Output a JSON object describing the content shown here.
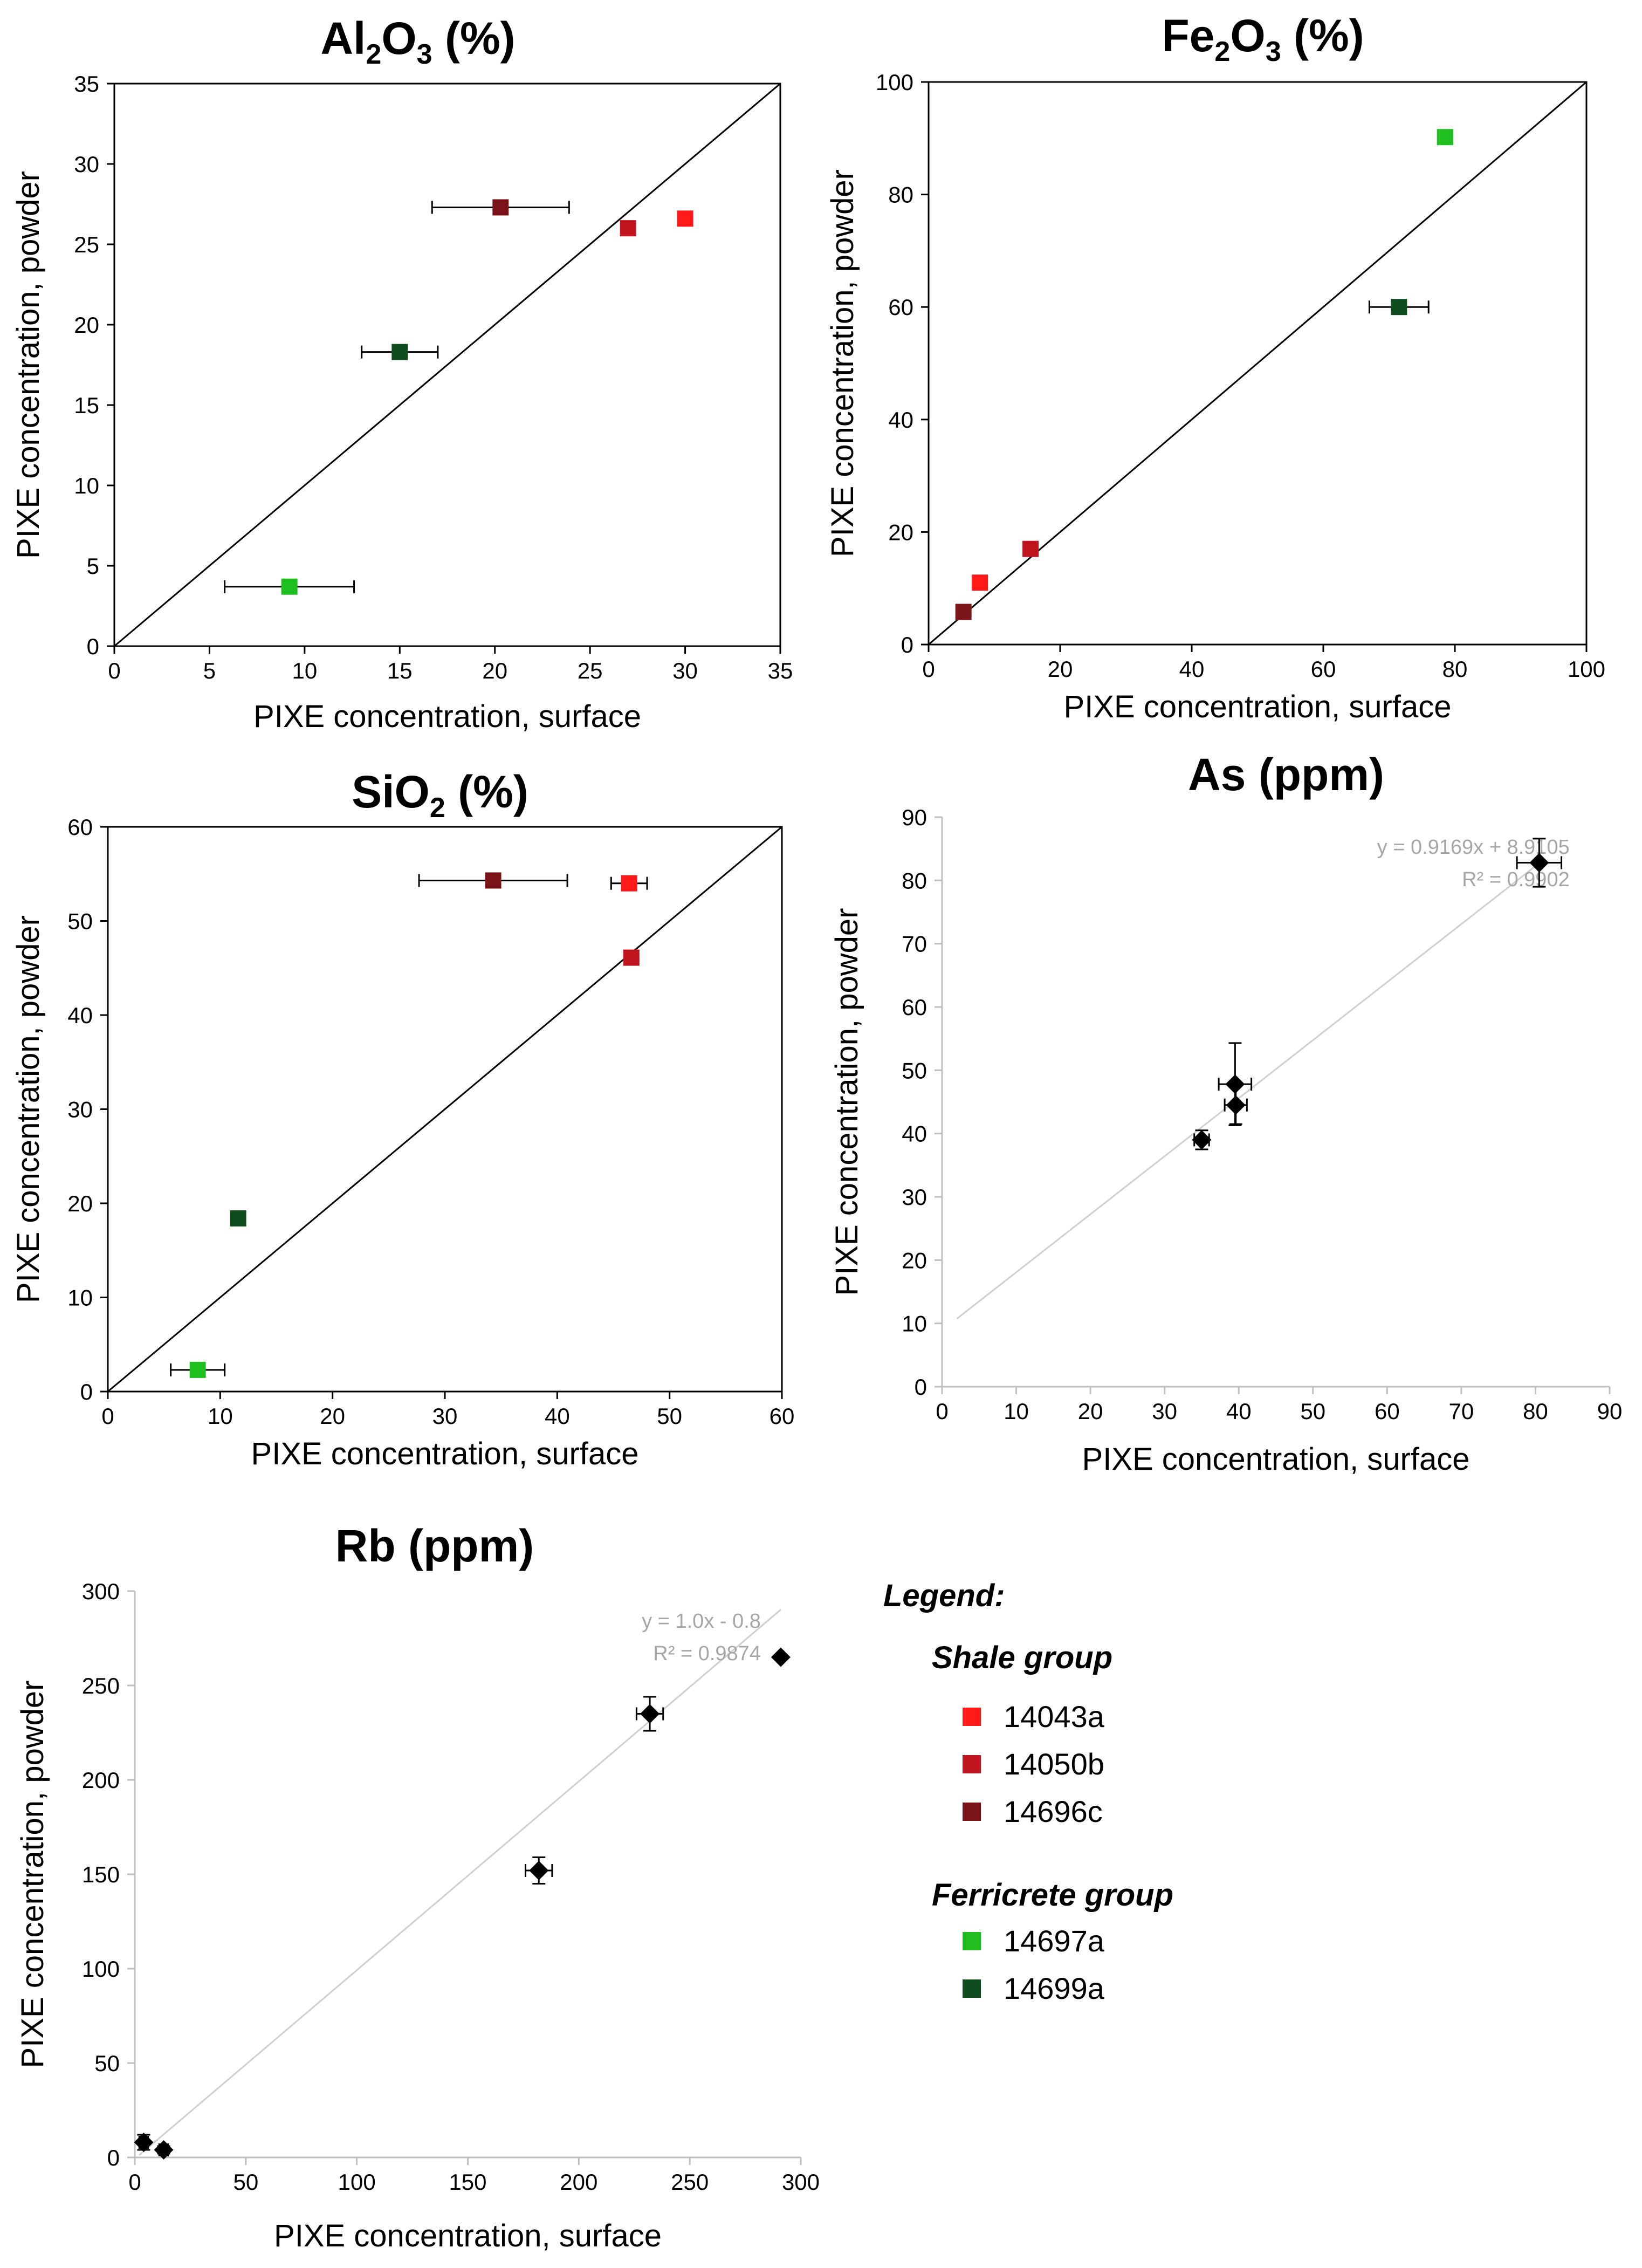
{
  "colors": {
    "14043a": "#ff1a1a",
    "14050b": "#c0141e",
    "14696c": "#7a1418",
    "14697a": "#1fbf1f",
    "14699a": "#0f4d1f",
    "trend": "#d0d0d0",
    "trend_text": "#a6a6a6",
    "black_marker": "#000000"
  },
  "legend": {
    "title": "Legend:",
    "groups": [
      {
        "title": "Shale group",
        "items": [
          {
            "label": "14043a",
            "color_key": "14043a"
          },
          {
            "label": "14050b",
            "color_key": "14050b"
          },
          {
            "label": "14696c",
            "color_key": "14696c"
          }
        ]
      },
      {
        "title": "Ferricrete group",
        "items": [
          {
            "label": "14697a",
            "color_key": "14697a"
          },
          {
            "label": "14699a",
            "color_key": "14699a"
          }
        ]
      }
    ]
  },
  "chart_data": [
    {
      "id": "al2o3",
      "type": "scatter",
      "title": "Al2O3 (%)",
      "title_parts": [
        {
          "t": "Al"
        },
        {
          "t": "2",
          "sub": true
        },
        {
          "t": "O"
        },
        {
          "t": "3",
          "sub": true
        },
        {
          "t": " (%)"
        }
      ],
      "xlabel": "PIXE concentration, surface",
      "ylabel": "PIXE concentration, powder",
      "xlim": [
        0,
        35
      ],
      "ylim": [
        0,
        35
      ],
      "xticks": [
        0,
        5,
        10,
        15,
        20,
        25,
        30,
        35
      ],
      "yticks": [
        0,
        5,
        10,
        15,
        20,
        25,
        30,
        35
      ],
      "reference_line": "y=x",
      "marker": "square",
      "points": [
        {
          "sample": "14043a",
          "x": 30.0,
          "y": 26.6
        },
        {
          "sample": "14050b",
          "x": 27.0,
          "y": 26.0
        },
        {
          "sample": "14696c",
          "x": 20.3,
          "y": 27.3,
          "xerr": 3.6
        },
        {
          "sample": "14699a",
          "x": 15.0,
          "y": 18.3,
          "xerr": 2.0
        },
        {
          "sample": "14697a",
          "x": 9.2,
          "y": 3.7,
          "xerr": 3.4
        }
      ]
    },
    {
      "id": "fe2o3",
      "type": "scatter",
      "title": "Fe2O3 (%)",
      "title_parts": [
        {
          "t": "Fe"
        },
        {
          "t": "2",
          "sub": true
        },
        {
          "t": "O"
        },
        {
          "t": "3",
          "sub": true
        },
        {
          "t": " (%)"
        }
      ],
      "xlabel": "PIXE concentration, surface",
      "ylabel": "PIXE concentration, powder",
      "xlim": [
        0,
        100
      ],
      "ylim": [
        0,
        100
      ],
      "xticks": [
        0,
        20,
        40,
        60,
        80,
        100
      ],
      "yticks": [
        0,
        20,
        40,
        60,
        80,
        100
      ],
      "reference_line": "y=x",
      "marker": "square",
      "points": [
        {
          "sample": "14697a",
          "x": 78.5,
          "y": 90.2
        },
        {
          "sample": "14699a",
          "x": 71.5,
          "y": 60.0,
          "xerr": 4.5
        },
        {
          "sample": "14050b",
          "x": 15.5,
          "y": 17.0
        },
        {
          "sample": "14043a",
          "x": 7.8,
          "y": 11.0
        },
        {
          "sample": "14696c",
          "x": 5.3,
          "y": 5.8
        }
      ]
    },
    {
      "id": "sio2",
      "type": "scatter",
      "title": "SiO2 (%)",
      "title_parts": [
        {
          "t": "SiO"
        },
        {
          "t": "2",
          "sub": true
        },
        {
          "t": " (%)"
        }
      ],
      "xlabel": "PIXE concentration, surface",
      "ylabel": "PIXE concentration, powder",
      "xlim": [
        0,
        60
      ],
      "ylim": [
        0,
        60
      ],
      "xticks": [
        0,
        10,
        20,
        30,
        40,
        50,
        60
      ],
      "yticks": [
        0,
        10,
        20,
        30,
        40,
        50,
        60
      ],
      "reference_line": "y=x",
      "marker": "square",
      "points": [
        {
          "sample": "14696c",
          "x": 34.3,
          "y": 54.3,
          "xerr": 6.6
        },
        {
          "sample": "14043a",
          "x": 46.4,
          "y": 54.0,
          "xerr": 1.6
        },
        {
          "sample": "14050b",
          "x": 46.6,
          "y": 46.1
        },
        {
          "sample": "14699a",
          "x": 11.6,
          "y": 18.4
        },
        {
          "sample": "14697a",
          "x": 8.0,
          "y": 2.3,
          "xerr": 2.4
        }
      ]
    },
    {
      "id": "as",
      "type": "scatter",
      "title": "As (ppm)",
      "title_parts": [
        {
          "t": "As (ppm)"
        }
      ],
      "xlabel": "PIXE concentration, surface",
      "ylabel": "PIXE concentration, powder",
      "xlim": [
        0,
        90
      ],
      "ylim": [
        0,
        90
      ],
      "xticks": [
        0,
        10,
        20,
        30,
        40,
        50,
        60,
        70,
        80,
        90
      ],
      "yticks": [
        0,
        10,
        20,
        30,
        40,
        50,
        60,
        70,
        80,
        90
      ],
      "reference_line": "trend",
      "trend_range": [
        2,
        81
      ],
      "trend": {
        "slope": 0.9169,
        "intercept": 8.9105
      },
      "annotation": [
        "y = 0.9169x + 8.9105",
        "R² = 0.9902"
      ],
      "marker": "diamond",
      "points": [
        {
          "x": 80.5,
          "y": 82.8,
          "xerr": 3.0,
          "yerr": 3.8
        },
        {
          "x": 39.5,
          "y": 47.8,
          "xerr": 2.2,
          "yerr": 6.5
        },
        {
          "x": 39.6,
          "y": 44.5,
          "xerr": 1.5,
          "yerr": 3.0
        },
        {
          "x": 35.0,
          "y": 39.0,
          "xerr": 1.0,
          "yerr": 1.5
        }
      ]
    },
    {
      "id": "rb",
      "type": "scatter",
      "title": "Rb (ppm)",
      "title_parts": [
        {
          "t": "Rb (ppm)"
        }
      ],
      "xlabel": "PIXE concentration, surface",
      "ylabel": "PIXE concentration, powder",
      "xlim": [
        0,
        300
      ],
      "ylim": [
        0,
        300
      ],
      "xticks": [
        0,
        50,
        100,
        150,
        200,
        250,
        300
      ],
      "yticks": [
        0,
        50,
        100,
        150,
        200,
        250,
        300
      ],
      "reference_line": "trend",
      "trend_range": [
        2,
        291
      ],
      "trend": {
        "slope": 1.0,
        "intercept": -0.8
      },
      "annotation": [
        "y = 1.0x - 0.8",
        "R² = 0.9874"
      ],
      "marker": "diamond",
      "points": [
        {
          "x": 291,
          "y": 265
        },
        {
          "x": 232,
          "y": 235,
          "xerr": 6,
          "yerr": 9
        },
        {
          "x": 182,
          "y": 152,
          "xerr": 6,
          "yerr": 7
        },
        {
          "x": 4,
          "y": 8,
          "xerr": 2,
          "yerr": 4
        },
        {
          "x": 13,
          "y": 4,
          "xerr": 2,
          "yerr": 2
        }
      ]
    }
  ]
}
